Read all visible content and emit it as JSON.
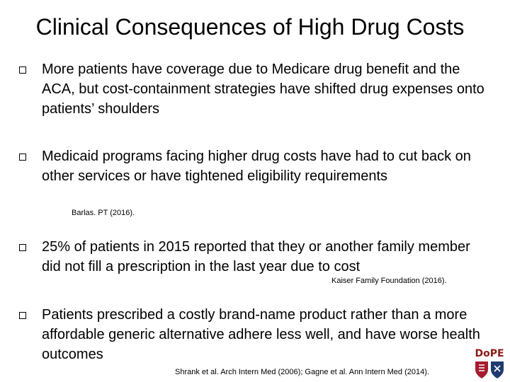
{
  "title": "Clinical Consequences of High Drug Costs",
  "bullets": [
    {
      "text": "More patients have coverage due to Medicare drug benefit and the ACA, but cost-containment strategies have shifted drug expenses onto patients’ shoulders",
      "citation": ""
    },
    {
      "text": "Medicaid programs facing higher drug costs have had to cut back on other services or have tightened eligibility requirements",
      "citation": "Barlas. PT (2016)."
    },
    {
      "text": "25% of patients in 2015 reported that they or another family member did not fill a prescription in the last year due to cost",
      "citation": "Kaiser Family Foundation (2016)."
    },
    {
      "text": "Patients prescribed a costly brand-name product rather than a more affordable generic alternative adhere less well, and have worse health outcomes",
      "citation": "Shrank et al. Arch Intern Med (2006); Gagne et al. Ann Intern Med (2014)."
    }
  ],
  "logo": {
    "text": "DoPE",
    "color": "#8a1a1a",
    "shield_colors": [
      "#a51c30",
      "#1f3a6e"
    ]
  }
}
